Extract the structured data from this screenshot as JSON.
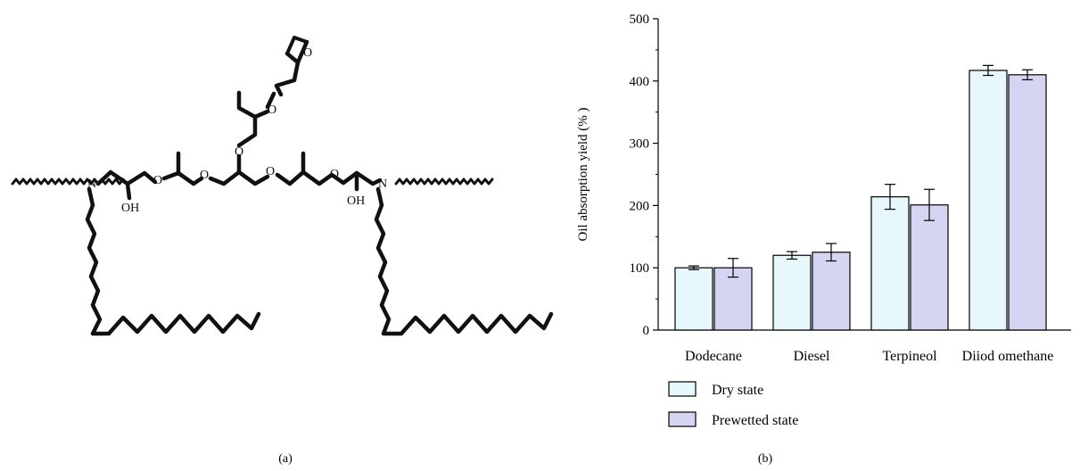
{
  "panel_a": {
    "label": "(a)",
    "atoms": {
      "oh": "OH",
      "o": "O",
      "n": "N"
    }
  },
  "panel_b": {
    "label": "(b)"
  },
  "chart_data": {
    "type": "bar",
    "categories": [
      "Dodecane",
      "Diesel",
      "Terpineol",
      "Diiod omethane"
    ],
    "series": [
      {
        "name": "Dry state",
        "values": [
          100,
          120,
          214,
          417
        ],
        "errors": [
          3,
          6,
          20,
          8
        ],
        "color": "#e6f8fc"
      },
      {
        "name": "Prewetted state",
        "values": [
          100,
          125,
          201,
          410
        ],
        "errors": [
          15,
          14,
          25,
          8
        ],
        "color": "#d5d4f2"
      }
    ],
    "title": "",
    "xlabel": "",
    "ylabel": "Oil absorption yield (% )",
    "ylim": [
      0,
      500
    ],
    "yticks": [
      0,
      100,
      200,
      300,
      400,
      500
    ],
    "grid": false,
    "legend": "bottom-left"
  }
}
